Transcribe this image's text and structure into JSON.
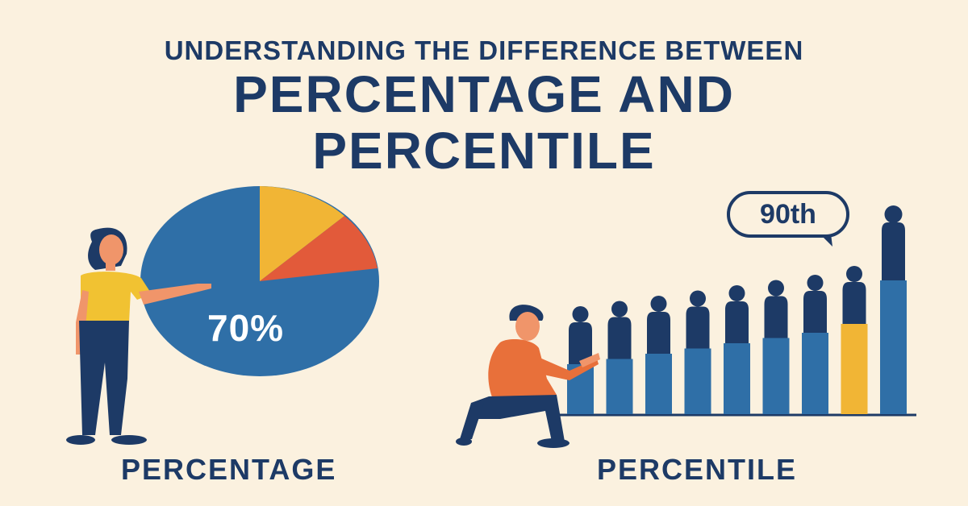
{
  "header": {
    "subtitle": "UNDERSTANDING THE DIFFERENCE BETWEEN",
    "title_line1": "PERCENTAGE AND",
    "title_line2": "PERCENTILE"
  },
  "left_panel": {
    "pie_label": "70%",
    "caption": "PERCENTAGE",
    "pie_slices": [
      {
        "share": 0.12,
        "color": "#f1b535"
      },
      {
        "share": 0.09,
        "color": "#e25a3a"
      },
      {
        "share": 0.79,
        "color": "#2f6fa7"
      }
    ]
  },
  "right_panel": {
    "bubble_text": "90th",
    "caption": "PERCENTILE",
    "highlighted_bar_index": 7
  },
  "colors": {
    "navy": "#1d3a66",
    "blue": "#2f6fa7",
    "yellow": "#f1b535",
    "orange": "#e8703a",
    "background": "#fbf1df"
  }
}
